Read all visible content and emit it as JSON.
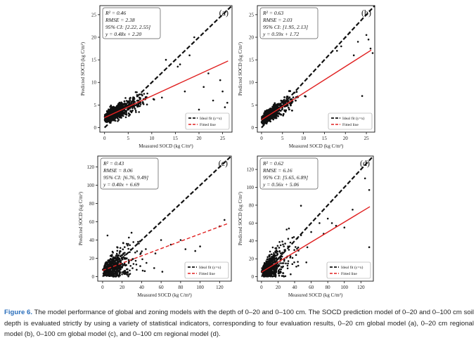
{
  "caption": {
    "label": "Figure 6.",
    "text": "The model performance of global and zoning models with the depth of 0–20 and 0–100 cm. The SOCD prediction model of 0–20 and 0–100 cm soil depth is evaluated strictly by using a variety of statistical indicators, corresponding to four evaluation results, 0–20 cm global model (a), 0–20 cm regional model (b), 0–100 cm global model (c), and 0–100 cm regional model (d)."
  },
  "colors": {
    "ideal": "#111111",
    "fitted": "#e02020",
    "points": "#111111"
  },
  "chart_data": [
    {
      "panel": "(a)",
      "type": "scatter",
      "xlabel": "Measured SOCD (kg C/m²)",
      "ylabel": "Predicted SOCD (kg C/m²)",
      "xlim": [
        -1,
        27
      ],
      "ylim": [
        -1,
        27
      ],
      "xticks": [
        0,
        5,
        10,
        15,
        20,
        25
      ],
      "yticks": [
        0,
        5,
        10,
        15,
        20,
        25
      ],
      "stats": [
        "R² = 0.46",
        "RMSE = 2.38",
        "95% CI: [2.22, 2.55]",
        "y = 0.48x + 2.20"
      ],
      "slope": 0.48,
      "intercept": 2.2,
      "fitted_style": "solid",
      "legend": [
        "Ideal fit (y=x)",
        "Fitted line"
      ],
      "point_count": 1500,
      "outliers": [
        [
          24.5,
          10.5
        ],
        [
          25.5,
          4.5
        ],
        [
          26,
          5.5
        ],
        [
          20,
          4
        ],
        [
          19,
          20
        ],
        [
          15.5,
          13.5
        ],
        [
          22,
          12
        ],
        [
          17,
          8
        ],
        [
          23,
          6
        ],
        [
          13,
          15
        ],
        [
          18,
          16
        ],
        [
          21,
          9
        ],
        [
          25,
          8
        ],
        [
          16,
          14
        ]
      ]
    },
    {
      "panel": "(b)",
      "type": "scatter",
      "xlabel": "Measured SOCD (kg C/m²)",
      "ylabel": "Predicted SOCD (kg C/m²)",
      "xlim": [
        -1,
        27
      ],
      "ylim": [
        -1,
        27
      ],
      "xticks": [
        0,
        5,
        10,
        15,
        20,
        25
      ],
      "yticks": [
        0,
        5,
        10,
        15,
        20,
        25
      ],
      "stats": [
        "R² = 0.63",
        "RMSE = 2.03",
        "95% CI: [1.95, 2.13]",
        "y = 0.59x + 1.72"
      ],
      "slope": 0.59,
      "intercept": 1.72,
      "fitted_style": "solid",
      "legend": [
        "Ideal fit (y=x)",
        "Fitted line"
      ],
      "point_count": 1900,
      "outliers": [
        [
          25.5,
          19.5
        ],
        [
          26,
          17.5
        ],
        [
          24,
          7
        ],
        [
          22,
          16
        ],
        [
          20,
          20
        ],
        [
          19,
          18
        ],
        [
          26.5,
          16.5
        ],
        [
          23,
          19
        ],
        [
          18,
          17
        ],
        [
          21,
          21
        ],
        [
          25,
          20.5
        ]
      ]
    },
    {
      "panel": "(c)",
      "type": "scatter",
      "xlabel": "Measured SOCD (kg C/m²)",
      "ylabel": "Predicted SOCD (kg C/m²)",
      "xlim": [
        -5,
        132
      ],
      "ylim": [
        -5,
        132
      ],
      "xticks": [
        0,
        20,
        40,
        60,
        80,
        100,
        120
      ],
      "yticks": [
        0,
        20,
        40,
        60,
        80,
        100,
        120
      ],
      "stats": [
        "R² = 0.43",
        "RMSE = 8.06",
        "95% CI: [6.76, 9.49]",
        "y = 0.40x + 6.69"
      ],
      "slope": 0.4,
      "intercept": 6.69,
      "fitted_style": "dashed",
      "legend": [
        "Ideal fit (y=x)",
        "Fitted line"
      ],
      "point_count": 650,
      "outliers": [
        [
          120,
          55
        ],
        [
          125,
          62
        ],
        [
          100,
          33
        ],
        [
          80,
          40
        ],
        [
          70,
          35
        ],
        [
          60,
          40
        ],
        [
          85,
          30
        ],
        [
          110,
          15
        ],
        [
          95,
          28
        ],
        [
          5,
          45
        ],
        [
          45,
          15
        ],
        [
          118,
          10
        ]
      ]
    },
    {
      "panel": "(d)",
      "type": "scatter",
      "xlabel": "Measured SOCD (kg C/m²)",
      "ylabel": "Predicted SOCD (kg C/m²)",
      "xlim": [
        -5,
        135
      ],
      "ylim": [
        -5,
        135
      ],
      "xticks": [
        0,
        20,
        40,
        60,
        80,
        100,
        120
      ],
      "yticks": [
        0,
        20,
        40,
        60,
        80,
        100,
        120
      ],
      "stats": [
        "R² = 0.62",
        "RMSE = 6.16",
        "95% CI: [5.65, 6.89]",
        "y = 0.56x + 5.06"
      ],
      "slope": 0.56,
      "intercept": 5.06,
      "fitted_style": "solid",
      "legend": [
        "Ideal fit (y=x)",
        "Fitted line"
      ],
      "point_count": 650,
      "outliers": [
        [
          125,
          110
        ],
        [
          130,
          97
        ],
        [
          130,
          33
        ],
        [
          110,
          75
        ],
        [
          80,
          65
        ],
        [
          85,
          60
        ],
        [
          70,
          60
        ],
        [
          90,
          57
        ],
        [
          60,
          50
        ],
        [
          100,
          55
        ],
        [
          75,
          48
        ]
      ]
    }
  ]
}
